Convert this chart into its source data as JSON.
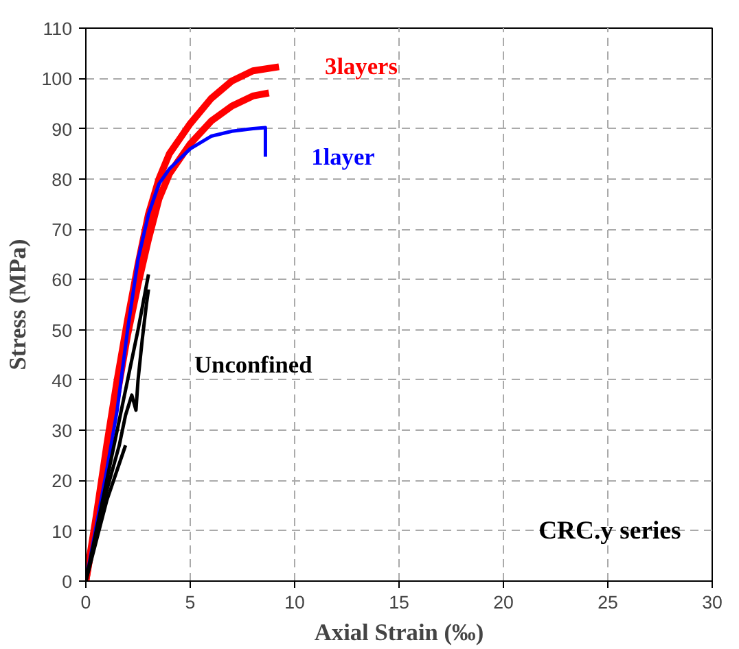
{
  "chart_data": {
    "type": "line",
    "xlabel": "Axial Strain (‰)",
    "ylabel": "Stress (MPa)",
    "xlim": [
      0,
      30
    ],
    "ylim": [
      0,
      110
    ],
    "xticks": [
      0,
      5,
      10,
      15,
      20,
      25,
      30
    ],
    "yticks": [
      0,
      10,
      20,
      30,
      40,
      50,
      60,
      70,
      80,
      90,
      100,
      110
    ],
    "grid": true,
    "marker": "none",
    "line_style": "solid",
    "series": [
      {
        "name": "3layers",
        "color": "#ff0000",
        "x": [
          0,
          0.5,
          1,
          1.5,
          2,
          2.5,
          3,
          3.5,
          4,
          5,
          6,
          7,
          8,
          9.25
        ],
        "values": [
          0,
          13,
          27,
          40,
          52,
          63,
          73,
          80,
          85,
          91,
          96,
          99.5,
          101.5,
          102.3
        ]
      },
      {
        "color": "#ff0000",
        "x": [
          0,
          0.5,
          1,
          1.5,
          2,
          2.5,
          3,
          3.5,
          4,
          5,
          6,
          7,
          8,
          8.77
        ],
        "values": [
          0,
          12,
          25,
          37,
          49,
          59,
          68,
          76,
          81,
          87,
          91.5,
          94.5,
          96.5,
          97.1
        ]
      },
      {
        "name": "1layer",
        "color": "#0000ff",
        "x": [
          0,
          0.5,
          1,
          1.5,
          2,
          2.5,
          3,
          3.5,
          4,
          4.5,
          5,
          6,
          7,
          8,
          8.6,
          8.6
        ],
        "values": [
          0,
          11,
          22,
          34,
          50,
          64,
          73,
          79,
          82,
          84,
          86,
          88.5,
          89.5,
          90,
          90.2,
          84.4
        ]
      },
      {
        "name": "Unconfined",
        "color": "#000000",
        "x": [
          0,
          1,
          2,
          2.5,
          3
        ],
        "values": [
          0,
          20,
          40,
          50,
          61
        ]
      },
      {
        "color": "#000000",
        "x": [
          0,
          1,
          1.6,
          1.9,
          2.2,
          2.4,
          2.5,
          2.7,
          2.9,
          3.0
        ],
        "values": [
          0,
          18,
          27,
          33,
          37,
          34,
          40,
          48,
          55,
          58
        ]
      },
      {
        "color": "#000000",
        "x": [
          0,
          1,
          1.9
        ],
        "values": [
          0,
          16,
          27
        ]
      }
    ],
    "annotations": [
      "CRC.y series"
    ]
  }
}
